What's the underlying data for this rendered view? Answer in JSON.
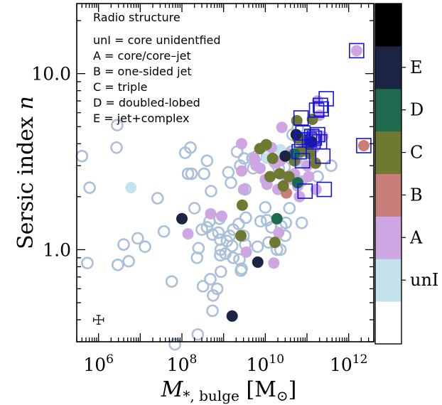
{
  "chart_data": {
    "type": "scatter",
    "xscale": "log",
    "yscale": "log",
    "xlim": [
      300000,
      4000000000000
    ],
    "ylim": [
      0.3,
      25
    ],
    "xticks": [
      {
        "value": 1000000,
        "base": "10",
        "exp": "6"
      },
      {
        "value": 100000000,
        "base": "10",
        "exp": "8"
      },
      {
        "value": 10000000000,
        "base": "10",
        "exp": "10"
      },
      {
        "value": 1000000000000,
        "base": "10",
        "exp": "12"
      }
    ],
    "yticks": [
      {
        "value": 1.0,
        "label": "1.0"
      },
      {
        "value": 10.0,
        "label": "10.0"
      }
    ],
    "xlabel": {
      "main": "M",
      "sub": "*, bulge",
      "unit": " [M",
      "unit_sub": "⊙",
      "close": "]"
    },
    "ylabel": {
      "text": "Sersic index ",
      "italic": "n"
    },
    "legend_text": {
      "title": "Radio structure",
      "lines": [
        "unI = core unidentfied",
        "A = core/core–jet",
        "B = one-sided jet",
        "C = triple",
        "D = doubled-lobed",
        "E = jet+complex"
      ]
    },
    "colorbar": {
      "placement": "right",
      "segments": [
        {
          "color": "#ffffff",
          "label": ""
        },
        {
          "color": "#c5e2ef",
          "label": "unI"
        },
        {
          "color": "#cda6e3",
          "label": "A"
        },
        {
          "color": "#c97e7a",
          "label": "B"
        },
        {
          "color": "#6e7a32",
          "label": "C"
        },
        {
          "color": "#1e6a4e",
          "label": "D"
        },
        {
          "color": "#1c2444",
          "label": "E"
        },
        {
          "color": "#000000",
          "label": ""
        }
      ]
    },
    "colors": {
      "open_marker": "#a9bfda",
      "box_marker": "#1414d6",
      "unI": "#c5e2ef",
      "A": "#cda6e3",
      "B": "#c97e7a",
      "C": "#6e7a32",
      "D": "#1e6a4e",
      "E": "#1c2444"
    },
    "error_bar": {
      "x": 1000000,
      "y": 0.4,
      "xerr_dex": 0.12,
      "yerr_dex": 0.025
    },
    "series": [
      {
        "marker": "open-circle",
        "points": [
          [
            400000,
            3.4
          ],
          [
            540000,
            0.84
          ],
          [
            610000,
            2.25
          ],
          [
            2800000,
            5.1
          ],
          [
            2700000,
            3.8
          ],
          [
            2900000,
            0.82
          ],
          [
            4000000,
            1.07
          ],
          [
            5300000,
            0.86
          ],
          [
            8700000,
            1.16
          ],
          [
            13000000,
            1.04
          ],
          [
            26000000,
            1.96
          ],
          [
            37000000,
            1.27
          ],
          [
            57000000,
            0.66
          ],
          [
            68000000,
            0.29
          ],
          [
            120000000,
            3.55
          ],
          [
            140000000,
            2.7
          ],
          [
            160000000,
            3.8
          ],
          [
            170000000,
            2.7
          ],
          [
            200000000,
            1.72
          ],
          [
            230000000,
            0.9
          ],
          [
            250000000,
            1.02
          ],
          [
            240000000,
            0.33
          ],
          [
            300000000,
            1.3
          ],
          [
            340000000,
            2.7
          ],
          [
            320000000,
            0.62
          ],
          [
            400000000,
            3.2
          ],
          [
            460000000,
            1.45
          ],
          [
            500000000,
            2.15
          ],
          [
            400000000,
            1.34
          ],
          [
            480000000,
            0.68
          ],
          [
            540000000,
            1.22
          ],
          [
            560000000,
            0.55
          ],
          [
            540000000,
            0.45
          ],
          [
            700000000,
            0.6
          ],
          [
            750000000,
            1.25
          ],
          [
            800000000,
            1.5
          ],
          [
            830000000,
            1.14
          ],
          [
            850000000,
            1.0
          ],
          [
            830000000,
            0.93
          ],
          [
            860000000,
            0.75
          ],
          [
            1100000000,
            0.95
          ],
          [
            1300000000,
            2.75
          ],
          [
            1200000000,
            1.12
          ],
          [
            1400000000,
            1.2
          ],
          [
            1500000000,
            2.4
          ],
          [
            1600000000,
            1.05
          ],
          [
            1700000000,
            0.9
          ],
          [
            1700000000,
            1.3
          ],
          [
            2100000000,
            3.6
          ],
          [
            2500000000,
            3.0
          ],
          [
            2300000000,
            1.4
          ],
          [
            2400000000,
            0.88
          ],
          [
            2700000000,
            0.78
          ],
          [
            2600000000,
            0.76
          ],
          [
            3100000000,
            3.3
          ],
          [
            3300000000,
            2.2
          ],
          [
            3400000000,
            1.52
          ],
          [
            3000000000,
            1.2
          ],
          [
            3300000000,
            1.07
          ],
          [
            4900000000,
            3.3
          ],
          [
            5100000000,
            2.9
          ],
          [
            6200000000,
            3.4
          ],
          [
            6500000000,
            1.04
          ],
          [
            7700000000,
            1.45
          ],
          [
            10000000000,
            1.74
          ],
          [
            11000000000,
            3.4
          ],
          [
            11000000000,
            1.47
          ],
          [
            12000000000,
            1.1
          ],
          [
            14000000000,
            1.34
          ],
          [
            16000000000,
            3.2
          ],
          [
            18000000000,
            3.5
          ],
          [
            19000000000,
            1.0
          ],
          [
            21000000000,
            2.9
          ],
          [
            23000000000,
            1.0
          ],
          [
            24000000000,
            1.36
          ],
          [
            29000000000,
            2.95
          ],
          [
            30000000000,
            1.2
          ],
          [
            31000000000,
            1.42
          ],
          [
            38000000000,
            1.72
          ],
          [
            42000000000,
            3.6
          ],
          [
            45000000000,
            4.5
          ],
          [
            60000000000,
            4.9
          ],
          [
            75000000000,
            1.42
          ],
          [
            85000000000,
            3.8
          ],
          [
            100000000000,
            3.3
          ],
          [
            110000000000,
            4.5
          ],
          [
            150000000000,
            3.85
          ],
          [
            180000000000,
            2.6
          ],
          [
            380000000000,
            3.0
          ]
        ]
      },
      {
        "marker": "filled-circle",
        "class": "unI",
        "points": [
          [
            6000000,
            2.25
          ],
          [
            11000000000,
            3.3
          ],
          [
            23000000000,
            3.7
          ],
          [
            70000000000,
            3.1
          ]
        ]
      },
      {
        "marker": "filled-circle",
        "class": "A",
        "points": [
          [
            140000000,
            1.23
          ],
          [
            490000000,
            1.6
          ],
          [
            900000000,
            1.55
          ],
          [
            2700000000,
            4.0
          ],
          [
            2700000000,
            2.8
          ],
          [
            3000000000,
            2.2
          ],
          [
            3500000000,
            0.97
          ],
          [
            5500000000,
            3.3
          ],
          [
            6000000000,
            3.0
          ],
          [
            7500000000,
            2.9
          ],
          [
            10000000000,
            2.5
          ],
          [
            11000000000,
            2.35
          ],
          [
            14000000000,
            3.8
          ],
          [
            16000000000,
            0.84
          ],
          [
            17000000000,
            3.1
          ],
          [
            20000000000,
            2.2
          ],
          [
            21000000000,
            1.25
          ],
          [
            23000000000,
            3.2
          ],
          [
            25000000000,
            4.95
          ],
          [
            32000000000,
            2.6
          ],
          [
            38000000000,
            3.5
          ],
          [
            45000000000,
            2.5
          ],
          [
            50000000000,
            2.7
          ],
          [
            55000000000,
            3.2
          ],
          [
            60000000000,
            2.3
          ],
          [
            66000000000,
            2.0
          ],
          [
            75000000000,
            2.45
          ],
          [
            85000000000,
            3.9
          ],
          [
            90000000000,
            3.8
          ],
          [
            95000000000,
            3.6
          ],
          [
            100000000000,
            3.0
          ],
          [
            110000000000,
            2.6
          ],
          [
            120000000000,
            4.0
          ],
          [
            130000000000,
            4.5
          ],
          [
            150000000000,
            3.8
          ],
          [
            165000000000,
            2.2
          ],
          [
            180000000000,
            7.0
          ],
          [
            200000000000,
            5.8
          ],
          [
            240000000000,
            4.4
          ],
          [
            1550000000000,
            13.5
          ]
        ]
      },
      {
        "marker": "filled-circle",
        "class": "B",
        "points": [
          [
            32000000000,
            2.1
          ],
          [
            2300000000000,
            3.9
          ]
        ]
      },
      {
        "marker": "filled-circle",
        "class": "C",
        "points": [
          [
            2800000000,
            1.79
          ],
          [
            2600000000,
            1.2
          ],
          [
            7400000000,
            3.75
          ],
          [
            10500000000,
            3.95
          ],
          [
            13000000000,
            2.6
          ],
          [
            15000000000,
            3.3
          ],
          [
            17000000000,
            1.1
          ],
          [
            22000000000,
            2.7
          ],
          [
            27000000000,
            2.3
          ],
          [
            37000000000,
            2.6
          ],
          [
            50000000000,
            3.2
          ],
          [
            57000000000,
            5.4
          ],
          [
            60000000000,
            4.3
          ],
          [
            70000000000,
            3.6
          ],
          [
            90000000000,
            4.2
          ],
          [
            105000000000,
            4.0
          ],
          [
            120000000000,
            3.5
          ],
          [
            135000000000,
            5.5
          ],
          [
            160000000000,
            3.1
          ]
        ]
      },
      {
        "marker": "filled-circle",
        "class": "D",
        "points": [
          [
            19000000000,
            1.5
          ],
          [
            50000000000,
            3.5
          ],
          [
            60000000000,
            2.4
          ]
        ]
      },
      {
        "marker": "filled-circle",
        "class": "E",
        "points": [
          [
            100000000,
            1.5
          ],
          [
            1600000000,
            0.42
          ],
          [
            6600000000,
            0.85
          ],
          [
            30000000000,
            3.4
          ],
          [
            55000000000,
            4.5
          ],
          [
            130000000000,
            4.1
          ]
        ]
      },
      {
        "marker": "open-square",
        "points": [
          [
            65000000000,
            3.6
          ],
          [
            75000000000,
            4.2
          ],
          [
            78000000000,
            3.2
          ],
          [
            80000000000,
            4.6
          ],
          [
            72000000000,
            5.6
          ],
          [
            90000000000,
            2.15
          ],
          [
            115000000000,
            4.2
          ],
          [
            130000000000,
            4.4
          ],
          [
            140000000000,
            4.1
          ],
          [
            150000000000,
            4.3
          ],
          [
            170000000000,
            6.2
          ],
          [
            180000000000,
            4.5
          ],
          [
            200000000000,
            4.1
          ],
          [
            210000000000,
            6.6
          ],
          [
            220000000000,
            6.3
          ],
          [
            240000000000,
            3.4
          ],
          [
            260000000000,
            2.2
          ],
          [
            290000000000,
            7.2
          ],
          [
            1550000000000,
            13.5
          ],
          [
            2300000000000,
            3.9
          ]
        ]
      }
    ]
  }
}
